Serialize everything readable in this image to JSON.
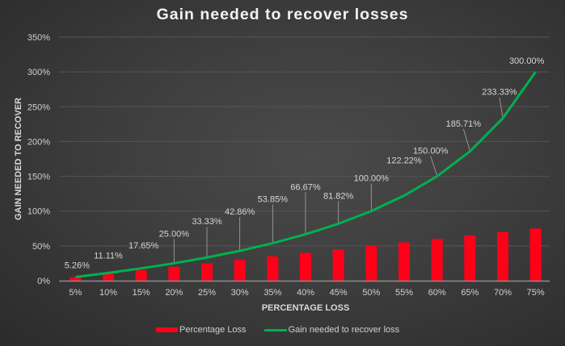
{
  "chart": {
    "title": "Gain needed to recover losses",
    "xlabel": "PERCENTAGE LOSS",
    "ylabel": "GAIN NEEDED TO RECOVER",
    "yticks": [
      "0%",
      "50%",
      "100%",
      "150%",
      "200%",
      "250%",
      "300%",
      "350%"
    ],
    "legend": {
      "bar_label": "Percentage Loss",
      "line_label": "Gain needed to recover loss"
    },
    "colors": {
      "bar": "#ff0019",
      "line": "#00b050",
      "background": "#3e3e3e",
      "grid": "#555555"
    }
  },
  "chart_data": {
    "type": "bar+line",
    "title": "Gain needed to recover losses",
    "xlabel": "PERCENTAGE LOSS",
    "ylabel": "GAIN NEEDED TO RECOVER",
    "ylim": [
      0,
      350
    ],
    "ytick_step": 50,
    "grid": true,
    "legend_position": "bottom",
    "categories": [
      "5%",
      "10%",
      "15%",
      "20%",
      "25%",
      "30%",
      "35%",
      "40%",
      "45%",
      "50%",
      "55%",
      "60%",
      "65%",
      "70%",
      "75%"
    ],
    "series": [
      {
        "name": "Percentage Loss",
        "type": "bar",
        "values": [
          5,
          10,
          15,
          20,
          25,
          30,
          35,
          40,
          45,
          50,
          55,
          60,
          65,
          70,
          75
        ]
      },
      {
        "name": "Gain needed to recover loss",
        "type": "line",
        "values": [
          5.26,
          11.11,
          17.65,
          25.0,
          33.33,
          42.86,
          53.85,
          66.67,
          81.82,
          100.0,
          122.22,
          150.0,
          185.71,
          233.33,
          300.0
        ],
        "data_labels": [
          "5.26%",
          "11.11%",
          "17.65%",
          "25.00%",
          "33.33%",
          "42.86%",
          "53.85%",
          "66.67%",
          "81.82%",
          "100.00%",
          "122.22%",
          "150.00%",
          "185.71%",
          "233.33%",
          "300.00%"
        ]
      }
    ]
  }
}
